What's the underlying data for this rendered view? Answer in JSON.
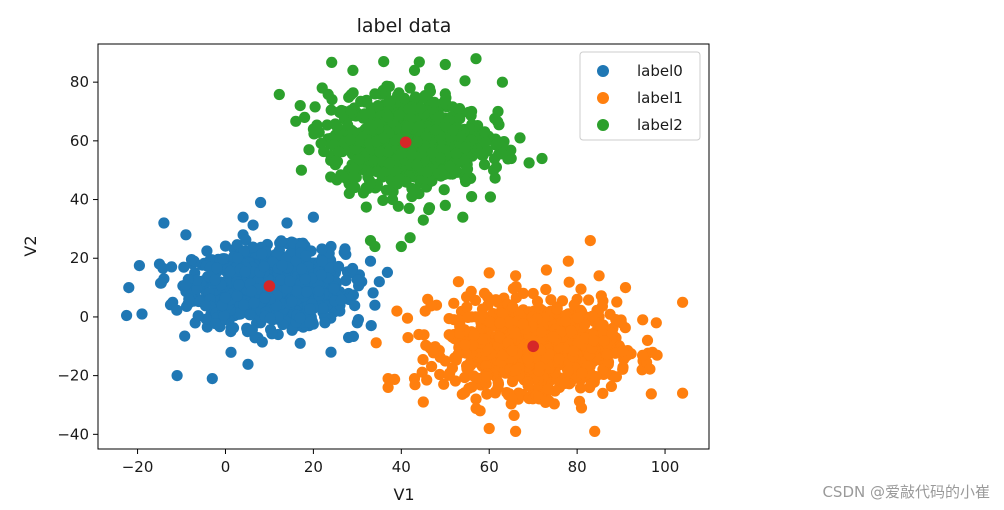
{
  "chart_data": {
    "type": "scatter",
    "title": "label data",
    "xlabel": "V1",
    "ylabel": "V2",
    "xlim": [
      -29,
      110
    ],
    "ylim": [
      -45,
      93
    ],
    "xticks": [
      -20,
      0,
      20,
      40,
      60,
      80,
      100
    ],
    "yticks": [
      -40,
      -20,
      0,
      20,
      40,
      60,
      80
    ],
    "grid": false,
    "legend_position": "top-right",
    "series": [
      {
        "name": "label0",
        "color": "#1f77b4",
        "cluster_center": [
          10,
          10
        ],
        "spread": [
          8.5,
          6.5
        ],
        "points": [
          [
            -22,
            10
          ],
          [
            -22.5,
            0.5
          ],
          [
            -19,
            1
          ],
          [
            -15,
            18
          ],
          [
            -14,
            32
          ],
          [
            -11,
            -20
          ],
          [
            -3,
            -21
          ],
          [
            -14,
            13
          ],
          [
            -12,
            5
          ],
          [
            -9,
            28
          ],
          [
            4,
            34
          ],
          [
            8,
            39
          ],
          [
            14,
            32
          ],
          [
            20,
            34
          ],
          [
            27,
            22
          ],
          [
            33,
            19
          ],
          [
            35,
            12
          ],
          [
            34,
            4
          ],
          [
            30,
            -2
          ],
          [
            28,
            -7
          ],
          [
            24,
            -12
          ],
          [
            17,
            -9
          ],
          [
            12,
            -6
          ],
          [
            5,
            -5
          ],
          [
            -1,
            -1
          ],
          [
            -5,
            6
          ],
          [
            -7,
            15
          ],
          [
            2,
            23
          ],
          [
            3,
            10
          ],
          [
            6,
            15
          ],
          [
            9,
            8
          ],
          [
            10,
            12
          ],
          [
            13,
            16
          ],
          [
            15,
            4
          ],
          [
            18,
            10
          ],
          [
            20,
            13
          ],
          [
            22,
            5
          ],
          [
            11,
            20
          ],
          [
            7,
            4
          ],
          [
            16,
            18
          ],
          [
            1,
            18
          ],
          [
            25,
            15
          ],
          [
            28,
            8
          ],
          [
            24,
            24
          ],
          [
            19,
            -3
          ],
          [
            8,
            -2
          ],
          [
            4,
            28
          ],
          [
            26,
            2
          ],
          [
            31,
            12
          ],
          [
            14,
            25
          ]
        ]
      },
      {
        "name": "label1",
        "color": "#ff7f0e",
        "cluster_center": [
          70,
          -10
        ],
        "spread": [
          9.5,
          7.5
        ],
        "points": [
          [
            104,
            5
          ],
          [
            104,
            -26
          ],
          [
            83,
            26
          ],
          [
            37,
            -21
          ],
          [
            37,
            -24
          ],
          [
            39,
            2
          ],
          [
            43,
            -21
          ],
          [
            45,
            -29
          ],
          [
            46,
            6
          ],
          [
            57,
            -28
          ],
          [
            60,
            -38
          ],
          [
            66,
            -39
          ],
          [
            84,
            -39
          ],
          [
            81,
            -31
          ],
          [
            88,
            -20
          ],
          [
            96,
            -8
          ],
          [
            98,
            -2
          ],
          [
            95,
            -15
          ],
          [
            91,
            10
          ],
          [
            85,
            14
          ],
          [
            78,
            19
          ],
          [
            73,
            16
          ],
          [
            66,
            14
          ],
          [
            60,
            15
          ],
          [
            53,
            12
          ],
          [
            48,
            4
          ],
          [
            44,
            -6
          ],
          [
            50,
            -15
          ],
          [
            55,
            -20
          ],
          [
            62,
            -24
          ],
          [
            70,
            -26
          ],
          [
            76,
            -24
          ],
          [
            82,
            -18
          ],
          [
            86,
            -4
          ],
          [
            80,
            6
          ],
          [
            74,
            2
          ],
          [
            68,
            -4
          ],
          [
            64,
            -10
          ],
          [
            58,
            -8
          ],
          [
            56,
            0
          ],
          [
            62,
            5
          ],
          [
            70,
            8
          ],
          [
            76,
            -8
          ],
          [
            72,
            -16
          ],
          [
            66,
            -18
          ],
          [
            59,
            -16
          ],
          [
            79,
            -12
          ],
          [
            84,
            -8
          ],
          [
            52,
            -6
          ],
          [
            65,
            2
          ]
        ]
      },
      {
        "name": "label2",
        "color": "#2ca02c",
        "cluster_center": [
          41,
          60
        ],
        "spread": [
          8.5,
          7.5
        ],
        "points": [
          [
            18,
            68
          ],
          [
            19,
            57
          ],
          [
            24,
            55
          ],
          [
            33,
            26
          ],
          [
            34,
            24
          ],
          [
            40,
            24
          ],
          [
            42,
            27
          ],
          [
            45,
            33
          ],
          [
            50,
            38
          ],
          [
            54,
            34
          ],
          [
            56,
            41
          ],
          [
            61,
            50
          ],
          [
            65,
            54
          ],
          [
            67,
            61
          ],
          [
            72,
            54
          ],
          [
            62,
            70
          ],
          [
            63,
            80
          ],
          [
            57,
            88
          ],
          [
            50,
            86
          ],
          [
            43,
            84
          ],
          [
            36,
            87
          ],
          [
            29,
            84
          ],
          [
            22,
            78
          ],
          [
            17,
            72
          ],
          [
            20,
            64
          ],
          [
            25,
            60
          ],
          [
            28,
            50
          ],
          [
            32,
            44
          ],
          [
            38,
            40
          ],
          [
            44,
            42
          ],
          [
            49,
            48
          ],
          [
            55,
            52
          ],
          [
            58,
            60
          ],
          [
            56,
            70
          ],
          [
            50,
            76
          ],
          [
            42,
            78
          ],
          [
            34,
            76
          ],
          [
            27,
            70
          ],
          [
            30,
            62
          ],
          [
            35,
            56
          ],
          [
            41,
            52
          ],
          [
            47,
            56
          ],
          [
            52,
            62
          ],
          [
            48,
            68
          ],
          [
            40,
            70
          ],
          [
            33,
            66
          ],
          [
            38,
            62
          ],
          [
            44,
            64
          ],
          [
            46,
            50
          ],
          [
            36,
            50
          ]
        ]
      },
      {
        "name": "",
        "color": "#d62728",
        "points": [
          [
            10,
            10.5
          ],
          [
            41,
            59.5
          ],
          [
            70,
            -10
          ]
        ]
      }
    ]
  },
  "watermark": "CSDN @爱敲代码的小崔"
}
